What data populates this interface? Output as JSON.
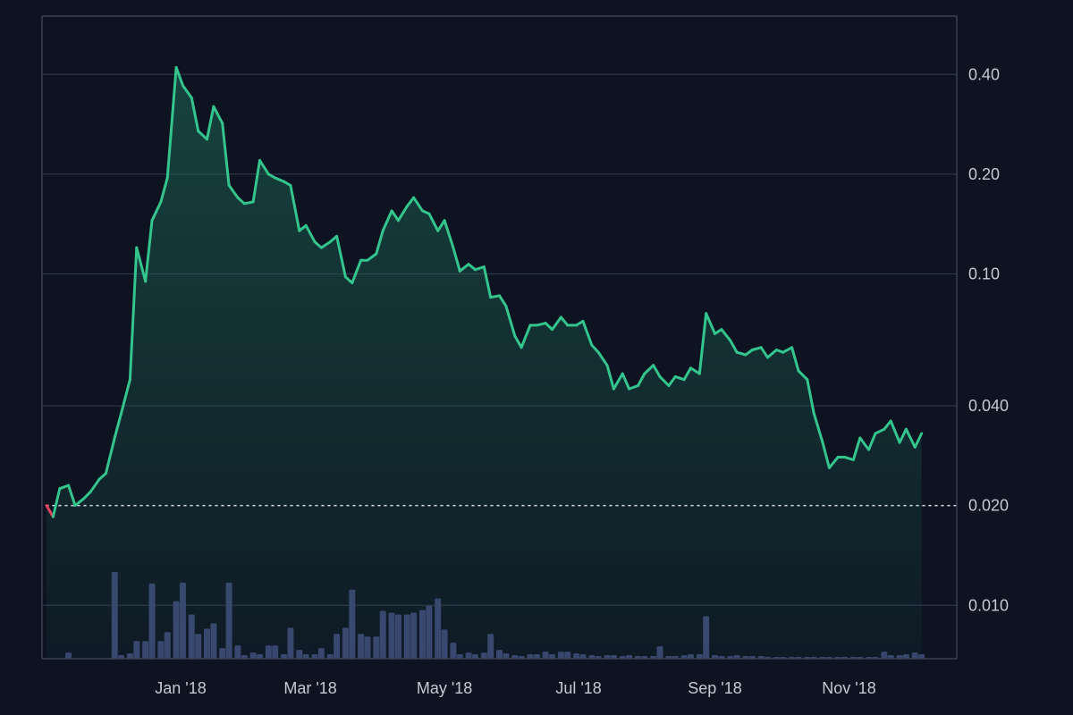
{
  "colors": {
    "background": "#0d1321",
    "grid": "#2e3647",
    "frame": "#3a4253",
    "line_up": "#34c48d",
    "line_down": "#e0435d",
    "fill_top": "#1f6a55",
    "volume": "#3b4471",
    "baseline": "#c8ccd6",
    "text": "#c4c9d4"
  },
  "chart_data": {
    "type": "line",
    "title": "",
    "xlabel": "",
    "ylabel": "",
    "y_scale": "log",
    "grid": true,
    "y_axis_position": "right",
    "ylim": [
      0.0069,
      0.6
    ],
    "y_ticks": [
      {
        "value": 0.4,
        "label": "0.40"
      },
      {
        "value": 0.2,
        "label": "0.20"
      },
      {
        "value": 0.1,
        "label": "0.10"
      },
      {
        "value": 0.04,
        "label": "0.040"
      },
      {
        "value": 0.02,
        "label": "0.020"
      },
      {
        "value": 0.01,
        "label": "0.010"
      }
    ],
    "x_ticks": [
      {
        "date": "2018-01-01",
        "label": "Jan '18"
      },
      {
        "date": "2018-03-01",
        "label": "Mar '18"
      },
      {
        "date": "2018-05-01",
        "label": "May '18"
      },
      {
        "date": "2018-07-01",
        "label": "Jul '18"
      },
      {
        "date": "2018-09-01",
        "label": "Sep '18"
      },
      {
        "date": "2018-11-01",
        "label": "Nov '18"
      }
    ],
    "xlim": [
      "2017-11-01",
      "2018-12-20"
    ],
    "baseline_value": 0.02,
    "series": [
      {
        "points": [
          [
            "2017-11-01",
            0.02
          ],
          [
            "2017-11-04",
            0.0185
          ],
          [
            "2017-11-07",
            0.0225
          ],
          [
            "2017-11-11",
            0.023
          ],
          [
            "2017-11-14",
            0.02
          ],
          [
            "2017-11-18",
            0.021
          ],
          [
            "2017-11-21",
            0.022
          ],
          [
            "2017-11-25",
            0.024
          ],
          [
            "2017-11-28",
            0.025
          ],
          [
            "2017-12-02",
            0.032
          ],
          [
            "2017-12-05",
            0.038
          ],
          [
            "2017-12-09",
            0.048
          ],
          [
            "2017-12-12",
            0.12
          ],
          [
            "2017-12-16",
            0.095
          ],
          [
            "2017-12-19",
            0.145
          ],
          [
            "2017-12-23",
            0.165
          ],
          [
            "2017-12-26",
            0.195
          ],
          [
            "2017-12-30",
            0.42
          ],
          [
            "2018-01-02",
            0.37
          ],
          [
            "2018-01-06",
            0.34
          ],
          [
            "2018-01-09",
            0.27
          ],
          [
            "2018-01-13",
            0.255
          ],
          [
            "2018-01-16",
            0.32
          ],
          [
            "2018-01-20",
            0.285
          ],
          [
            "2018-01-23",
            0.185
          ],
          [
            "2018-01-27",
            0.17
          ],
          [
            "2018-01-30",
            0.163
          ],
          [
            "2018-02-03",
            0.165
          ],
          [
            "2018-02-06",
            0.22
          ],
          [
            "2018-02-10",
            0.2
          ],
          [
            "2018-02-13",
            0.195
          ],
          [
            "2018-02-17",
            0.19
          ],
          [
            "2018-02-20",
            0.185
          ],
          [
            "2018-02-24",
            0.135
          ],
          [
            "2018-02-27",
            0.14
          ],
          [
            "2018-03-03",
            0.125
          ],
          [
            "2018-03-06",
            0.12
          ],
          [
            "2018-03-10",
            0.125
          ],
          [
            "2018-03-13",
            0.13
          ],
          [
            "2018-03-17",
            0.098
          ],
          [
            "2018-03-20",
            0.094
          ],
          [
            "2018-03-24",
            0.11
          ],
          [
            "2018-03-27",
            0.11
          ],
          [
            "2018-03-31",
            0.115
          ],
          [
            "2018-04-03",
            0.135
          ],
          [
            "2018-04-07",
            0.155
          ],
          [
            "2018-04-10",
            0.145
          ],
          [
            "2018-04-14",
            0.16
          ],
          [
            "2018-04-17",
            0.17
          ],
          [
            "2018-04-21",
            0.155
          ],
          [
            "2018-04-24",
            0.152
          ],
          [
            "2018-04-28",
            0.135
          ],
          [
            "2018-05-01",
            0.145
          ],
          [
            "2018-05-05",
            0.12
          ],
          [
            "2018-05-08",
            0.102
          ],
          [
            "2018-05-12",
            0.107
          ],
          [
            "2018-05-15",
            0.103
          ],
          [
            "2018-05-19",
            0.105
          ],
          [
            "2018-05-22",
            0.085
          ],
          [
            "2018-05-26",
            0.086
          ],
          [
            "2018-05-29",
            0.08
          ],
          [
            "2018-06-02",
            0.065
          ],
          [
            "2018-06-05",
            0.06
          ],
          [
            "2018-06-09",
            0.07
          ],
          [
            "2018-06-12",
            0.07
          ],
          [
            "2018-06-16",
            0.071
          ],
          [
            "2018-06-19",
            0.068
          ],
          [
            "2018-06-23",
            0.074
          ],
          [
            "2018-06-26",
            0.07
          ],
          [
            "2018-06-30",
            0.07
          ],
          [
            "2018-07-03",
            0.072
          ],
          [
            "2018-07-07",
            0.061
          ],
          [
            "2018-07-10",
            0.058
          ],
          [
            "2018-07-14",
            0.053
          ],
          [
            "2018-07-17",
            0.045
          ],
          [
            "2018-07-21",
            0.05
          ],
          [
            "2018-07-24",
            0.045
          ],
          [
            "2018-07-28",
            0.046
          ],
          [
            "2018-07-31",
            0.05
          ],
          [
            "2018-08-04",
            0.053
          ],
          [
            "2018-08-07",
            0.049
          ],
          [
            "2018-08-11",
            0.046
          ],
          [
            "2018-08-14",
            0.049
          ],
          [
            "2018-08-18",
            0.048
          ],
          [
            "2018-08-21",
            0.052
          ],
          [
            "2018-08-25",
            0.05
          ],
          [
            "2018-08-28",
            0.076
          ],
          [
            "2018-09-01",
            0.066
          ],
          [
            "2018-09-04",
            0.068
          ],
          [
            "2018-09-08",
            0.063
          ],
          [
            "2018-09-11",
            0.058
          ],
          [
            "2018-09-15",
            0.057
          ],
          [
            "2018-09-18",
            0.059
          ],
          [
            "2018-09-22",
            0.06
          ],
          [
            "2018-09-25",
            0.056
          ],
          [
            "2018-09-29",
            0.059
          ],
          [
            "2018-10-02",
            0.058
          ],
          [
            "2018-10-06",
            0.06
          ],
          [
            "2018-10-09",
            0.051
          ],
          [
            "2018-10-13",
            0.048
          ],
          [
            "2018-10-16",
            0.038
          ],
          [
            "2018-10-20",
            0.031
          ],
          [
            "2018-10-23",
            0.026
          ],
          [
            "2018-10-27",
            0.028
          ],
          [
            "2018-10-30",
            0.028
          ],
          [
            "2018-11-03",
            0.0275
          ],
          [
            "2018-11-06",
            0.032
          ],
          [
            "2018-11-10",
            0.0295
          ],
          [
            "2018-11-13",
            0.033
          ],
          [
            "2018-11-17",
            0.034
          ],
          [
            "2018-11-20",
            0.036
          ],
          [
            "2018-11-24",
            0.031
          ],
          [
            "2018-11-27",
            0.034
          ],
          [
            "2018-12-01",
            0.03
          ],
          [
            "2018-12-04",
            0.033
          ]
        ]
      }
    ],
    "volume": {
      "type": "bar",
      "ylim": [
        0,
        1
      ],
      "bars": [
        [
          "2017-11-01",
          0.0
        ],
        [
          "2017-11-04",
          0.0
        ],
        [
          "2017-11-07",
          0.0
        ],
        [
          "2017-11-11",
          0.07
        ],
        [
          "2017-11-14",
          0.0
        ],
        [
          "2017-11-18",
          0.0
        ],
        [
          "2017-11-21",
          0.0
        ],
        [
          "2017-11-25",
          0.0
        ],
        [
          "2017-11-28",
          0.0
        ],
        [
          "2017-12-02",
          0.98
        ],
        [
          "2017-12-05",
          0.04
        ],
        [
          "2017-12-09",
          0.06
        ],
        [
          "2017-12-12",
          0.2
        ],
        [
          "2017-12-16",
          0.2
        ],
        [
          "2017-12-19",
          0.85
        ],
        [
          "2017-12-23",
          0.2
        ],
        [
          "2017-12-26",
          0.3
        ],
        [
          "2017-12-30",
          0.65
        ],
        [
          "2018-01-02",
          0.86
        ],
        [
          "2018-01-06",
          0.5
        ],
        [
          "2018-01-09",
          0.28
        ],
        [
          "2018-01-13",
          0.34
        ],
        [
          "2018-01-16",
          0.4
        ],
        [
          "2018-01-20",
          0.12
        ],
        [
          "2018-01-23",
          0.86
        ],
        [
          "2018-01-27",
          0.15
        ],
        [
          "2018-01-30",
          0.04
        ],
        [
          "2018-02-03",
          0.07
        ],
        [
          "2018-02-06",
          0.05
        ],
        [
          "2018-02-10",
          0.15
        ],
        [
          "2018-02-13",
          0.15
        ],
        [
          "2018-02-17",
          0.05
        ],
        [
          "2018-02-20",
          0.35
        ],
        [
          "2018-02-24",
          0.1
        ],
        [
          "2018-02-27",
          0.05
        ],
        [
          "2018-03-03",
          0.05
        ],
        [
          "2018-03-06",
          0.12
        ],
        [
          "2018-03-10",
          0.05
        ],
        [
          "2018-03-13",
          0.28
        ],
        [
          "2018-03-17",
          0.35
        ],
        [
          "2018-03-20",
          0.78
        ],
        [
          "2018-03-24",
          0.28
        ],
        [
          "2018-03-27",
          0.25
        ],
        [
          "2018-03-31",
          0.25
        ],
        [
          "2018-04-03",
          0.54
        ],
        [
          "2018-04-07",
          0.52
        ],
        [
          "2018-04-10",
          0.5
        ],
        [
          "2018-04-14",
          0.5
        ],
        [
          "2018-04-17",
          0.52
        ],
        [
          "2018-04-21",
          0.55
        ],
        [
          "2018-04-24",
          0.6
        ],
        [
          "2018-04-28",
          0.68
        ],
        [
          "2018-05-01",
          0.33
        ],
        [
          "2018-05-05",
          0.18
        ],
        [
          "2018-05-08",
          0.05
        ],
        [
          "2018-05-12",
          0.07
        ],
        [
          "2018-05-15",
          0.05
        ],
        [
          "2018-05-19",
          0.07
        ],
        [
          "2018-05-22",
          0.28
        ],
        [
          "2018-05-26",
          0.1
        ],
        [
          "2018-05-29",
          0.06
        ],
        [
          "2018-06-02",
          0.04
        ],
        [
          "2018-06-05",
          0.03
        ],
        [
          "2018-06-09",
          0.05
        ],
        [
          "2018-06-12",
          0.05
        ],
        [
          "2018-06-16",
          0.08
        ],
        [
          "2018-06-19",
          0.05
        ],
        [
          "2018-06-23",
          0.08
        ],
        [
          "2018-06-26",
          0.08
        ],
        [
          "2018-06-30",
          0.06
        ],
        [
          "2018-07-03",
          0.05
        ],
        [
          "2018-07-07",
          0.04
        ],
        [
          "2018-07-10",
          0.03
        ],
        [
          "2018-07-14",
          0.04
        ],
        [
          "2018-07-17",
          0.04
        ],
        [
          "2018-07-21",
          0.03
        ],
        [
          "2018-07-24",
          0.04
        ],
        [
          "2018-07-28",
          0.03
        ],
        [
          "2018-07-31",
          0.03
        ],
        [
          "2018-08-04",
          0.03
        ],
        [
          "2018-08-07",
          0.14
        ],
        [
          "2018-08-11",
          0.03
        ],
        [
          "2018-08-14",
          0.03
        ],
        [
          "2018-08-18",
          0.04
        ],
        [
          "2018-08-21",
          0.05
        ],
        [
          "2018-08-25",
          0.05
        ],
        [
          "2018-08-28",
          0.48
        ],
        [
          "2018-09-01",
          0.04
        ],
        [
          "2018-09-04",
          0.03
        ],
        [
          "2018-09-08",
          0.03
        ],
        [
          "2018-09-11",
          0.04
        ],
        [
          "2018-09-15",
          0.03
        ],
        [
          "2018-09-18",
          0.03
        ],
        [
          "2018-09-22",
          0.03
        ],
        [
          "2018-09-25",
          0.02
        ],
        [
          "2018-09-29",
          0.02
        ],
        [
          "2018-10-02",
          0.02
        ],
        [
          "2018-10-06",
          0.02
        ],
        [
          "2018-10-09",
          0.02
        ],
        [
          "2018-10-13",
          0.02
        ],
        [
          "2018-10-16",
          0.02
        ],
        [
          "2018-10-20",
          0.02
        ],
        [
          "2018-10-23",
          0.02
        ],
        [
          "2018-10-27",
          0.02
        ],
        [
          "2018-10-30",
          0.02
        ],
        [
          "2018-11-03",
          0.02
        ],
        [
          "2018-11-06",
          0.02
        ],
        [
          "2018-11-10",
          0.02
        ],
        [
          "2018-11-13",
          0.02
        ],
        [
          "2018-11-17",
          0.08
        ],
        [
          "2018-11-20",
          0.04
        ],
        [
          "2018-11-24",
          0.04
        ],
        [
          "2018-11-27",
          0.05
        ],
        [
          "2018-12-01",
          0.07
        ],
        [
          "2018-12-04",
          0.05
        ]
      ]
    }
  }
}
